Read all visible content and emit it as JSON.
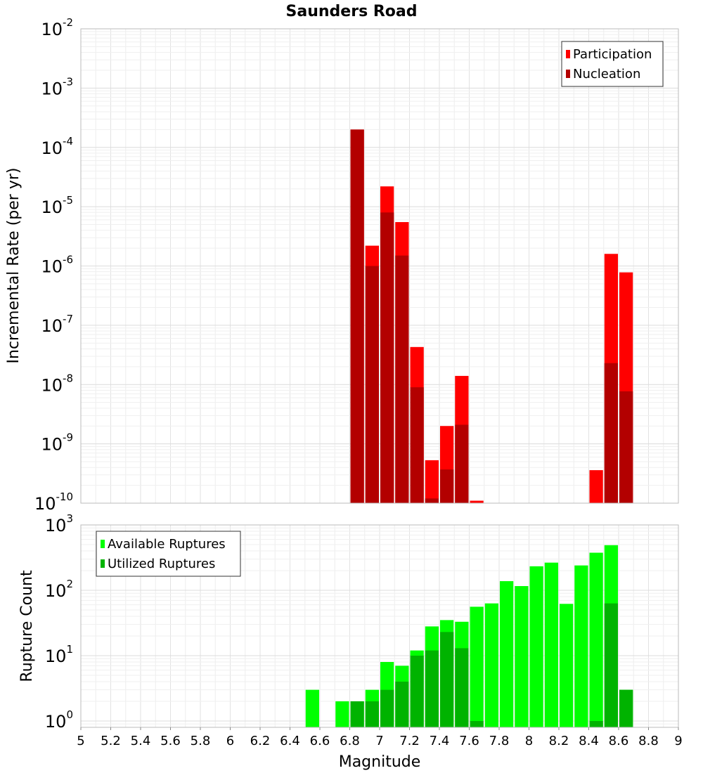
{
  "chart_data": [
    {
      "type": "bar",
      "title": "Saunders Road",
      "xlabel": "",
      "ylabel": "Incremental Rate (per yr)",
      "yscale": "log",
      "ylim": [
        1e-10,
        0.01
      ],
      "xlim": [
        5,
        9
      ],
      "grid": true,
      "legend_position": "top-right",
      "y_tick_labels": [
        {
          "base": "10",
          "exp": "-10"
        },
        {
          "base": "10",
          "exp": "-9"
        },
        {
          "base": "10",
          "exp": "-8"
        },
        {
          "base": "10",
          "exp": "-7"
        },
        {
          "base": "10",
          "exp": "-6"
        },
        {
          "base": "10",
          "exp": "-5"
        },
        {
          "base": "10",
          "exp": "-4"
        },
        {
          "base": "10",
          "exp": "-3"
        },
        {
          "base": "10",
          "exp": "-2"
        }
      ],
      "series": [
        {
          "name": "Participation",
          "color": "#ff0000",
          "x": [
            6.85,
            6.95,
            7.05,
            7.15,
            7.25,
            7.35,
            7.45,
            7.55,
            7.65,
            8.45,
            8.55,
            8.65
          ],
          "values": [
            0.0002,
            2.2e-06,
            2.2e-05,
            5.5e-06,
            4.3e-08,
            5.3e-10,
            2e-09,
            1.4e-08,
            1.1e-10,
            3.6e-10,
            1.6e-06,
            7.8e-07
          ]
        },
        {
          "name": "Nucleation",
          "color": "#b30000",
          "x": [
            6.85,
            6.95,
            7.05,
            7.15,
            7.25,
            7.35,
            7.45,
            7.55,
            8.55,
            8.65
          ],
          "values": [
            0.0002,
            1e-06,
            8e-06,
            1.5e-06,
            9e-09,
            1.2e-10,
            3.7e-10,
            2.1e-09,
            2.3e-08,
            7.7e-09
          ]
        }
      ]
    },
    {
      "type": "bar",
      "title": "",
      "xlabel": "Magnitude",
      "ylabel": "Rupture Count",
      "yscale": "log",
      "ylim": [
        0.8,
        1000
      ],
      "xlim": [
        5,
        9
      ],
      "grid": true,
      "legend_position": "top-left",
      "x_ticks": [
        "5",
        "5.2",
        "5.4",
        "5.6",
        "5.8",
        "6",
        "6.2",
        "6.4",
        "6.6",
        "6.8",
        "7",
        "7.2",
        "7.4",
        "7.6",
        "7.8",
        "8",
        "8.2",
        "8.4",
        "8.6",
        "8.8",
        "9"
      ],
      "y_tick_labels": [
        {
          "base": "10",
          "exp": "0"
        },
        {
          "base": "10",
          "exp": "1"
        },
        {
          "base": "10",
          "exp": "2"
        },
        {
          "base": "10",
          "exp": "3"
        }
      ],
      "series": [
        {
          "name": "Available Ruptures",
          "color": "#00ff00",
          "x": [
            6.55,
            6.75,
            6.85,
            6.95,
            7.05,
            7.15,
            7.25,
            7.35,
            7.45,
            7.55,
            7.65,
            7.75,
            7.85,
            7.95,
            8.05,
            8.15,
            8.25,
            8.35,
            8.45,
            8.55,
            8.65
          ],
          "values": [
            3,
            2,
            2,
            3,
            8,
            7,
            12,
            28,
            35,
            33,
            56,
            63,
            138,
            116,
            233,
            265,
            62,
            240,
            376,
            490,
            3
          ]
        },
        {
          "name": "Utilized Ruptures",
          "color": "#00b300",
          "x": [
            6.85,
            6.95,
            7.05,
            7.15,
            7.25,
            7.35,
            7.45,
            7.55,
            7.65,
            8.45,
            8.55,
            8.65
          ],
          "values": [
            2,
            2,
            3,
            4,
            10,
            12,
            23,
            13,
            1,
            1,
            63,
            3
          ]
        }
      ]
    }
  ]
}
